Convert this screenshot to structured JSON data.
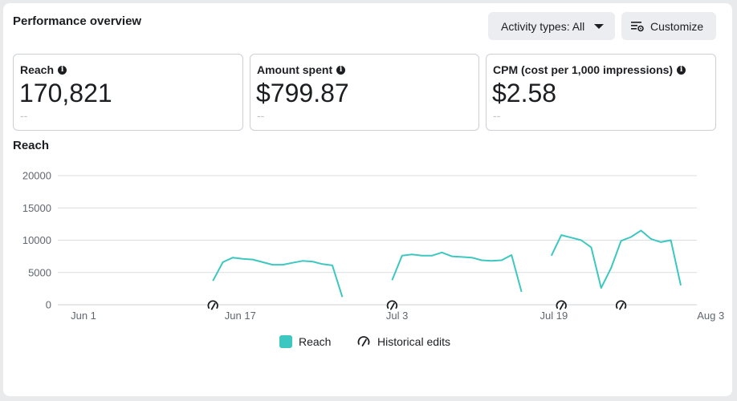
{
  "header": {
    "title": "Performance overview",
    "activity_label": "Activity types: All",
    "customize_label": "Customize"
  },
  "metrics": [
    {
      "label": "Reach",
      "value": "170,821",
      "sub": "--"
    },
    {
      "label": "Amount spent",
      "value": "$799.87",
      "sub": "--"
    },
    {
      "label": "CPM (cost per 1,000 impressions)",
      "value": "$2.58",
      "sub": "--"
    }
  ],
  "colors": {
    "series": "#3cc8c0",
    "grid": "#dadde1"
  },
  "chart_data": {
    "type": "line",
    "title": "Reach",
    "y_ticks": [
      "0",
      "5000",
      "10000",
      "15000",
      "20000"
    ],
    "x_ticks": [
      "Jun 1",
      "Jun 17",
      "Jul 3",
      "Jul 19",
      "Aug 3"
    ],
    "ylim": [
      0,
      20000
    ],
    "x_range_days": [
      0,
      63
    ],
    "grid": true,
    "legend_position": "bottom",
    "series": [
      {
        "name": "Reach",
        "segments": [
          [
            [
              13,
              3700
            ],
            [
              14,
              6600
            ],
            [
              15,
              7300
            ],
            [
              16,
              7100
            ],
            [
              17,
              7000
            ],
            [
              18,
              6600
            ],
            [
              19,
              6200
            ],
            [
              20,
              6200
            ],
            [
              21,
              6500
            ],
            [
              22,
              6800
            ],
            [
              23,
              6700
            ],
            [
              24,
              6300
            ],
            [
              25,
              6100
            ],
            [
              26,
              1200
            ]
          ],
          [
            [
              31,
              3800
            ],
            [
              32,
              7600
            ],
            [
              33,
              7800
            ],
            [
              34,
              7600
            ],
            [
              35,
              7600
            ],
            [
              36,
              8100
            ],
            [
              37,
              7500
            ],
            [
              38,
              7400
            ],
            [
              39,
              7300
            ],
            [
              40,
              6900
            ],
            [
              41,
              6800
            ],
            [
              42,
              6900
            ],
            [
              43,
              7700
            ],
            [
              44,
              2000
            ]
          ],
          [
            [
              47,
              7600
            ],
            [
              48,
              10800
            ],
            [
              49,
              10400
            ],
            [
              50,
              10000
            ],
            [
              51,
              8900
            ],
            [
              52,
              2600
            ],
            [
              53,
              5700
            ],
            [
              54,
              9900
            ],
            [
              55,
              10500
            ],
            [
              56,
              11500
            ],
            [
              57,
              10200
            ],
            [
              58,
              9700
            ],
            [
              59,
              10000
            ],
            [
              60,
              3000
            ]
          ]
        ]
      }
    ],
    "historical_edit_days": [
      13,
      31,
      48,
      54
    ],
    "legend": [
      {
        "name": "Reach",
        "type": "series"
      },
      {
        "name": "Historical edits",
        "type": "marker"
      }
    ]
  }
}
